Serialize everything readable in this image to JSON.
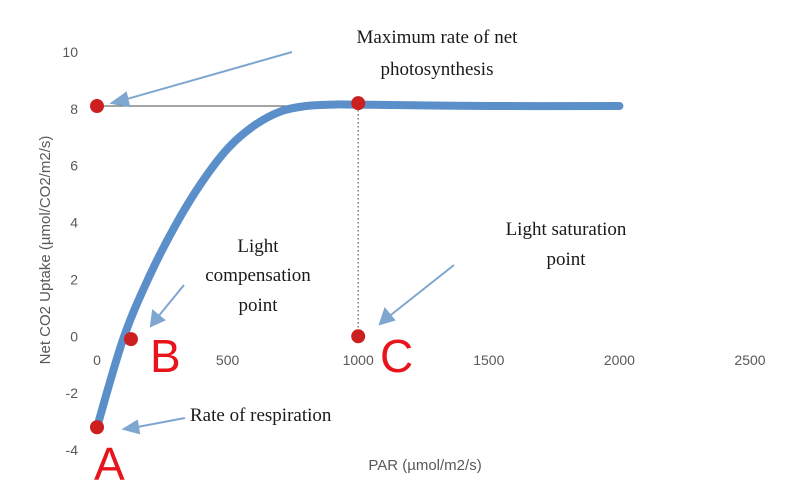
{
  "chart_data": {
    "type": "line",
    "title": "",
    "xlabel": "PAR (µmol/m2/s)",
    "ylabel": "Net CO2 Uptake (µmol/CO2/m2/s)",
    "xlim": [
      0,
      2500
    ],
    "ylim": [
      -4,
      10
    ],
    "x_ticks": [
      0,
      500,
      1000,
      1500,
      2000,
      2500
    ],
    "y_ticks": [
      -4,
      -2,
      0,
      2,
      4,
      6,
      8,
      10
    ],
    "grid": false,
    "legend": "none",
    "series": [
      {
        "color": "#5b8fc9",
        "x": [
          0,
          100,
          200,
          300,
          400,
          500,
          600,
          700,
          800,
          900,
          1000,
          1500,
          2000
        ],
        "y": [
          -3.2,
          -0.1,
          2.1,
          3.9,
          5.4,
          6.6,
          7.4,
          7.9,
          8.1,
          8.15,
          8.15,
          8.1,
          8.1
        ]
      }
    ],
    "markers": [
      {
        "x": 0,
        "y": 8.1
      },
      {
        "x": 1000,
        "y": 8.2
      },
      {
        "x": 130,
        "y": -0.1
      },
      {
        "x": 1000,
        "y": 0
      },
      {
        "x": 0,
        "y": -3.2
      }
    ],
    "marker_color": "#cc1f1f",
    "reference_lines": [
      {
        "from": [
          0,
          8.1
        ],
        "to": [
          1000,
          8.1
        ],
        "style": "solid"
      },
      {
        "from": [
          1000,
          8.1
        ],
        "to": [
          1000,
          0
        ],
        "style": "dotted"
      }
    ],
    "annotations": {
      "max_rate_line1": "Maximum rate of net",
      "max_rate_line2": "photosynthesis",
      "compensation_line1": "Light",
      "compensation_line2": "compensation",
      "compensation_line3": "point",
      "saturation_line1": "Light saturation",
      "saturation_line2": "point",
      "respiration": "Rate of respiration"
    },
    "point_labels": {
      "a": "A",
      "b": "B",
      "c": "C"
    }
  }
}
